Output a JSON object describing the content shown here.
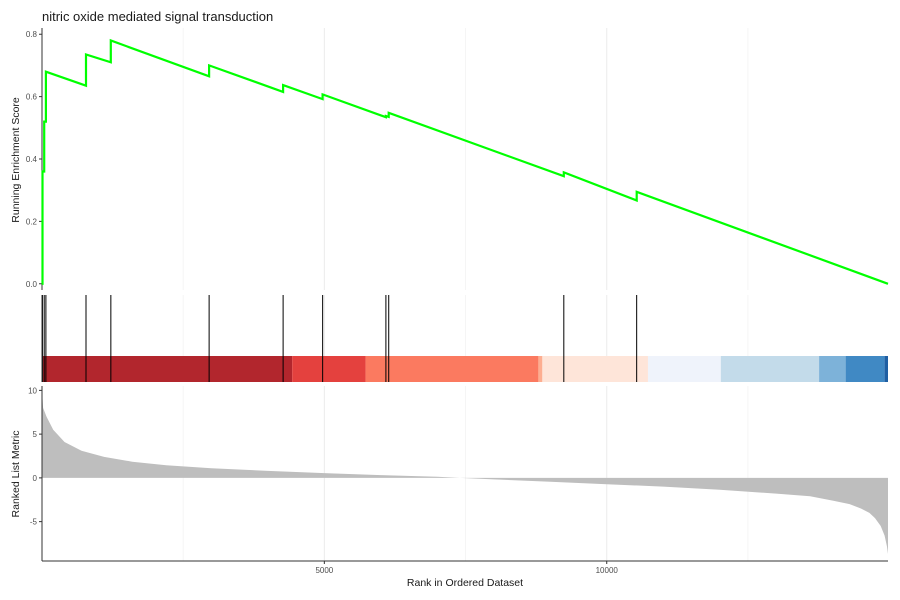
{
  "chart_data": {
    "type": "line",
    "title": "nitric oxide mediated signal transduction",
    "xlabel": "Rank in Ordered Dataset",
    "xlim": [
      1,
      14980
    ],
    "x_ticks": [
      5000,
      10000
    ],
    "x_tick_labels": [
      "5000",
      "10000"
    ],
    "grid": "vertical only",
    "panels": {
      "running_score": {
        "ylabel": "Running Enrichment Score",
        "ylim": [
          -0.02,
          0.82
        ],
        "y_ticks": [
          0.0,
          0.2,
          0.4,
          0.6,
          0.8
        ],
        "y_tick_labels": [
          "0.0",
          "0.2",
          "0.4",
          "0.6",
          "0.8"
        ],
        "line_color": "#00ff00",
        "series": [
          {
            "x": [
              0,
              10,
              10,
              40,
              40,
              70,
              70,
              780,
              780,
              1220,
              1220,
              2960,
              2960,
              4270,
              4270,
              4970,
              4970,
              6090,
              6090,
              6140,
              6140,
              9240,
              9240,
              10530,
              10530,
              14980
            ],
            "y": [
              0.0,
              0.0,
              0.36,
              0.36,
              0.52,
              0.52,
              0.68,
              0.635,
              0.735,
              0.71,
              0.78,
              0.665,
              0.7,
              0.615,
              0.637,
              0.592,
              0.607,
              0.534,
              0.538,
              0.535,
              0.548,
              0.345,
              0.357,
              0.267,
              0.295,
              0.0
            ]
          }
        ]
      },
      "hits": {
        "gene_positions": [
          10,
          40,
          70,
          780,
          1220,
          2960,
          4270,
          4970,
          6090,
          6140,
          9240,
          10530
        ],
        "color_bands": [
          {
            "from": 0,
            "to": 4430,
            "color": "#b2262d"
          },
          {
            "from": 4430,
            "to": 5730,
            "color": "#e4413e"
          },
          {
            "from": 5730,
            "to": 8790,
            "color": "#fb7a60"
          },
          {
            "from": 8790,
            "to": 8860,
            "color": "#fdae91"
          },
          {
            "from": 8860,
            "to": 10730,
            "color": "#fee5d9"
          },
          {
            "from": 10730,
            "to": 12020,
            "color": "#eff3fb"
          },
          {
            "from": 12020,
            "to": 13760,
            "color": "#c3dbea"
          },
          {
            "from": 13760,
            "to": 14230,
            "color": "#7db2d9"
          },
          {
            "from": 14230,
            "to": 14920,
            "color": "#4089c4"
          },
          {
            "from": 14920,
            "to": 14980,
            "color": "#1f5fa3"
          }
        ]
      },
      "ranked_metric": {
        "ylabel": "Ranked List Metric",
        "ylim": [
          -9.5,
          10.5
        ],
        "y_ticks": [
          -5,
          0,
          5,
          10
        ],
        "y_tick_labels": [
          "-5",
          "0",
          "5",
          "10"
        ],
        "fill_color": "#bebebe",
        "profile": {
          "x": [
            0,
            20,
            80,
            200,
            400,
            700,
            1100,
            1600,
            2200,
            3000,
            4000,
            5000,
            6000,
            7000,
            7400,
            8000,
            9000,
            10000,
            11000,
            12000,
            13000,
            13600,
            14000,
            14300,
            14500,
            14650,
            14750,
            14850,
            14920,
            14960,
            14980
          ],
          "y": [
            10.2,
            8.0,
            7.0,
            5.5,
            4.1,
            3.1,
            2.4,
            1.85,
            1.45,
            1.1,
            0.8,
            0.55,
            0.32,
            0.12,
            0.0,
            -0.18,
            -0.45,
            -0.72,
            -1.0,
            -1.35,
            -1.8,
            -2.1,
            -2.6,
            -3.0,
            -3.5,
            -4.0,
            -4.6,
            -5.5,
            -6.6,
            -7.8,
            -8.7
          ]
        }
      }
    }
  }
}
